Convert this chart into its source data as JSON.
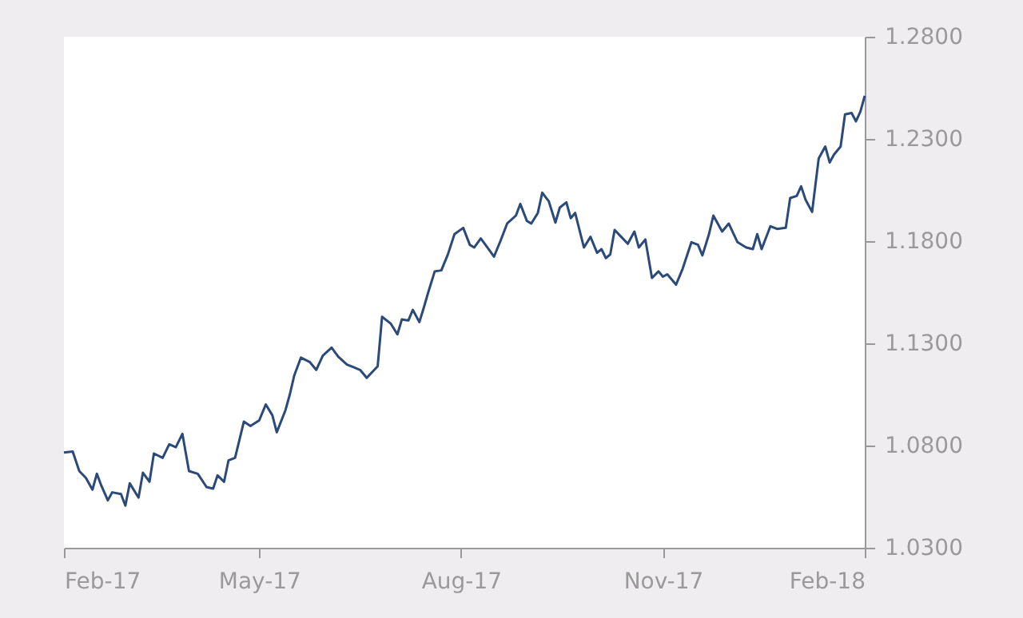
{
  "chart_data": {
    "type": "line",
    "x": [
      "2017-02-01",
      "2017-02-05",
      "2017-02-08",
      "2017-02-11",
      "2017-02-14",
      "2017-02-16",
      "2017-02-18",
      "2017-02-21",
      "2017-02-23",
      "2017-02-27",
      "2017-03-01",
      "2017-03-03",
      "2017-03-07",
      "2017-03-09",
      "2017-03-12",
      "2017-03-14",
      "2017-03-18",
      "2017-03-21",
      "2017-03-24",
      "2017-03-27",
      "2017-03-30",
      "2017-04-03",
      "2017-04-07",
      "2017-04-10",
      "2017-04-12",
      "2017-04-15",
      "2017-04-17",
      "2017-04-20",
      "2017-04-24",
      "2017-04-27",
      "2017-05-01",
      "2017-05-04",
      "2017-05-07",
      "2017-05-09",
      "2017-05-13",
      "2017-05-15",
      "2017-05-17",
      "2017-05-20",
      "2017-05-24",
      "2017-05-27",
      "2017-05-30",
      "2017-06-03",
      "2017-06-06",
      "2017-06-10",
      "2017-06-13",
      "2017-06-16",
      "2017-06-19",
      "2017-06-24",
      "2017-06-26",
      "2017-06-30",
      "2017-07-03",
      "2017-07-05",
      "2017-07-08",
      "2017-07-10",
      "2017-07-13",
      "2017-07-15",
      "2017-07-17",
      "2017-07-20",
      "2017-07-23",
      "2017-07-26",
      "2017-07-29",
      "2017-08-02",
      "2017-08-05",
      "2017-08-07",
      "2017-08-10",
      "2017-08-13",
      "2017-08-16",
      "2017-08-19",
      "2017-08-22",
      "2017-08-26",
      "2017-08-28",
      "2017-08-31",
      "2017-09-02",
      "2017-09-05",
      "2017-09-07",
      "2017-09-10",
      "2017-09-13",
      "2017-09-15",
      "2017-09-18",
      "2017-09-20",
      "2017-09-22",
      "2017-09-26",
      "2017-09-29",
      "2017-10-02",
      "2017-10-04",
      "2017-10-06",
      "2017-10-08",
      "2017-10-10",
      "2017-10-13",
      "2017-10-16",
      "2017-10-19",
      "2017-10-21",
      "2017-10-24",
      "2017-10-27",
      "2017-10-30",
      "2017-11-01",
      "2017-11-03",
      "2017-11-07",
      "2017-11-10",
      "2017-11-14",
      "2017-11-17",
      "2017-11-19",
      "2017-11-22",
      "2017-11-24",
      "2017-11-28",
      "2017-12-01",
      "2017-12-05",
      "2017-12-09",
      "2017-12-12",
      "2017-12-14",
      "2017-12-16",
      "2017-12-20",
      "2017-12-23",
      "2017-12-27",
      "2017-12-29",
      "2018-01-01",
      "2018-01-03",
      "2018-01-05",
      "2018-01-08",
      "2018-01-11",
      "2018-01-14",
      "2018-01-16",
      "2018-01-18",
      "2018-01-21",
      "2018-01-23",
      "2018-01-26",
      "2018-01-28",
      "2018-01-30",
      "2018-02-01"
    ],
    "series": [
      {
        "color": "#2b4a7a",
        "values": [
          1.0766,
          1.0771,
          1.0675,
          1.0642,
          1.0584,
          1.0662,
          1.0605,
          1.0532,
          1.0571,
          1.0563,
          1.0506,
          1.0615,
          1.0545,
          1.0667,
          1.0623,
          1.0761,
          1.074,
          1.0806,
          1.0792,
          1.0857,
          1.0675,
          1.0662,
          1.0597,
          1.0589,
          1.0654,
          1.0623,
          1.0727,
          1.074,
          1.0917,
          1.0896,
          1.0923,
          1.1001,
          1.0948,
          1.0865,
          1.0974,
          1.1052,
          1.1144,
          1.123,
          1.1209,
          1.117,
          1.124,
          1.1279,
          1.1235,
          1.1196,
          1.1183,
          1.117,
          1.1131,
          1.1188,
          1.143,
          1.1396,
          1.1344,
          1.1417,
          1.1412,
          1.1464,
          1.1404,
          1.1474,
          1.1548,
          1.1652,
          1.1657,
          1.1735,
          1.1834,
          1.1865,
          1.1782,
          1.1769,
          1.1813,
          1.1769,
          1.1724,
          1.1802,
          1.1886,
          1.1925,
          1.1982,
          1.1899,
          1.1886,
          1.1938,
          1.2037,
          1.1995,
          1.1891,
          1.1964,
          1.199,
          1.1912,
          1.1938,
          1.1769,
          1.1821,
          1.1743,
          1.1761,
          1.1717,
          1.1735,
          1.1855,
          1.1821,
          1.1787,
          1.1847,
          1.1769,
          1.1808,
          1.162,
          1.1652,
          1.1626,
          1.1638,
          1.1587,
          1.1665,
          1.1795,
          1.1782,
          1.173,
          1.1834,
          1.1925,
          1.1847,
          1.1886,
          1.1795,
          1.1769,
          1.1761,
          1.1834,
          1.1761,
          1.1873,
          1.186,
          1.1865,
          1.2011,
          1.2021,
          1.2068,
          1.2003,
          1.1943,
          1.2204,
          1.2263,
          1.2185,
          1.2224,
          1.2263,
          1.242,
          1.2427,
          1.2386,
          1.2433,
          1.2511
        ]
      }
    ],
    "xlim": [
      "2017-02-01",
      "2018-02-01"
    ],
    "xticks": [
      {
        "value": "2017-02-01",
        "label": "Feb-17"
      },
      {
        "value": "2017-05-01",
        "label": "May-17"
      },
      {
        "value": "2017-08-01",
        "label": "Aug-17"
      },
      {
        "value": "2017-11-01",
        "label": "Nov-17"
      },
      {
        "value": "2018-02-01",
        "label": "Feb-18"
      }
    ],
    "ylim": [
      1.03,
      1.28
    ],
    "yticks": [
      {
        "value": 1.03,
        "label": "1.0300"
      },
      {
        "value": 1.08,
        "label": "1.0800"
      },
      {
        "value": 1.13,
        "label": "1.1300"
      },
      {
        "value": 1.18,
        "label": "1.1800"
      },
      {
        "value": 1.23,
        "label": "1.2300"
      },
      {
        "value": 1.28,
        "label": "1.2800"
      }
    ],
    "grid": false,
    "legend": false,
    "marker": "none",
    "line_style": "solid"
  }
}
